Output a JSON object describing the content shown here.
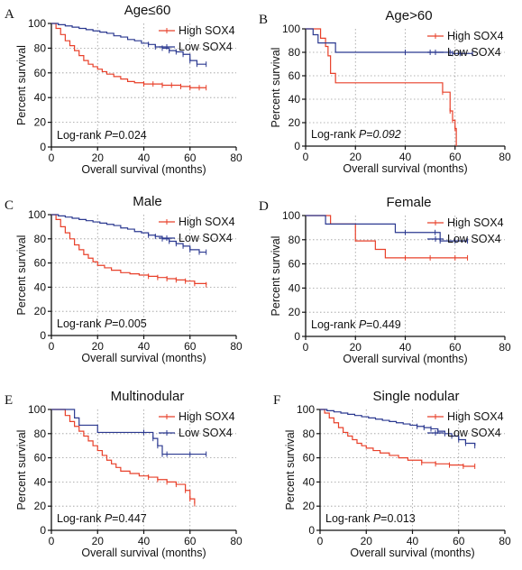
{
  "colors": {
    "high": "#e8402a",
    "low": "#2b3990",
    "axis": "#111111",
    "grid": "#9a9a9a"
  },
  "chart_data": [
    {
      "type": "line",
      "letter": "A",
      "title": "Age≤60",
      "xlabel": "Overall survival (months)",
      "ylabel": "Percent survival",
      "xlim": [
        0,
        80
      ],
      "ylim": [
        0,
        100
      ],
      "xticks": [
        "0",
        "20",
        "40",
        "60",
        "80"
      ],
      "yticks": [
        "0",
        "20",
        "40",
        "60",
        "80",
        "100"
      ],
      "grid": "vertical dotted at 20, 40, 60; horizontal dotted at 20, 40, 60, 80",
      "legend_position": "top-right",
      "logrank": {
        "prefix": "Log-rank ",
        "p": "P",
        "value": "=0.024",
        "value_italic": false
      },
      "series": [
        {
          "name": "High SOX4",
          "color": "#e8402a",
          "x": [
            0,
            2,
            4,
            6,
            8,
            10,
            12,
            14,
            16,
            18,
            20,
            22,
            24,
            27,
            30,
            33,
            36,
            40,
            44,
            48,
            52,
            56,
            60,
            64,
            67
          ],
          "y": [
            100,
            96,
            91,
            86,
            82,
            78,
            74,
            70,
            67,
            65,
            63,
            61,
            59,
            57,
            55,
            53,
            52,
            51,
            51,
            50,
            50,
            49,
            48,
            48,
            48
          ]
        },
        {
          "name": "Low SOX4",
          "color": "#2b3990",
          "x": [
            0,
            3,
            6,
            9,
            12,
            15,
            18,
            21,
            24,
            27,
            30,
            33,
            36,
            39,
            42,
            45,
            48,
            51,
            54,
            57,
            60,
            63,
            67
          ],
          "y": [
            100,
            99,
            98,
            97,
            96,
            95,
            94,
            93,
            92,
            90,
            89,
            87,
            86,
            84,
            83,
            81,
            80,
            78,
            77,
            75,
            70,
            67,
            67
          ]
        }
      ]
    },
    {
      "type": "line",
      "letter": "B",
      "title": "Age>60",
      "xlabel": "Overall survival (months)",
      "ylabel": "Percent survival",
      "xlim": [
        0,
        80
      ],
      "ylim": [
        0,
        100
      ],
      "xticks": [
        "0",
        "20",
        "40",
        "60",
        "80"
      ],
      "yticks": [
        "0",
        "20",
        "40",
        "60",
        "80",
        "100"
      ],
      "grid": "vertical dotted at 20, 40, 60; horizontal dotted at 20, 40, 60, 80",
      "legend_position": "top-right",
      "logrank": {
        "prefix": "Log-rank ",
        "p": "P",
        "value": "=0.092",
        "value_italic": true
      },
      "series": [
        {
          "name": "High SOX4",
          "color": "#e8402a",
          "x": [
            0,
            4,
            6,
            8,
            9,
            10,
            12,
            36,
            55,
            58,
            59,
            60,
            60.5
          ],
          "y": [
            100,
            100,
            92,
            85,
            77,
            62,
            54,
            54,
            46,
            30,
            22,
            15,
            0
          ]
        },
        {
          "name": "Low SOX4",
          "color": "#2b3990",
          "x": [
            0,
            3,
            5,
            8,
            12,
            20,
            30,
            40,
            50,
            58,
            59,
            62,
            67
          ],
          "y": [
            100,
            95,
            88,
            88,
            80,
            80,
            80,
            80,
            80,
            80,
            79,
            79,
            79
          ]
        }
      ]
    },
    {
      "type": "line",
      "letter": "C",
      "title": "Male",
      "xlabel": "Overall survival (months)",
      "ylabel": "Percent survival",
      "xlim": [
        0,
        80
      ],
      "ylim": [
        0,
        100
      ],
      "xticks": [
        "0",
        "20",
        "40",
        "60",
        "80"
      ],
      "yticks": [
        "0",
        "20",
        "40",
        "60",
        "80",
        "100"
      ],
      "grid": "vertical dotted at 20, 40, 60; horizontal dotted at 20, 40, 60, 80",
      "legend_position": "top-right",
      "logrank": {
        "prefix": "Log-rank ",
        "p": "P",
        "value": "=0.005",
        "value_italic": false
      },
      "series": [
        {
          "name": "High SOX4",
          "color": "#e8402a",
          "x": [
            0,
            2,
            4,
            6,
            8,
            10,
            12,
            14,
            16,
            18,
            20,
            23,
            26,
            30,
            34,
            38,
            42,
            46,
            50,
            54,
            58,
            62,
            67
          ],
          "y": [
            100,
            96,
            90,
            85,
            80,
            75,
            71,
            67,
            64,
            61,
            58,
            56,
            54,
            52,
            51,
            50,
            49,
            48,
            47,
            46,
            45,
            43,
            42
          ]
        },
        {
          "name": "Low SOX4",
          "color": "#2b3990",
          "x": [
            0,
            3,
            6,
            9,
            12,
            15,
            18,
            21,
            24,
            27,
            30,
            33,
            36,
            39,
            42,
            45,
            48,
            51,
            54,
            57,
            60,
            64,
            67
          ],
          "y": [
            100,
            99,
            98,
            97,
            96,
            95,
            94,
            93,
            92,
            91,
            89,
            88,
            86,
            85,
            83,
            82,
            80,
            78,
            76,
            74,
            71,
            69,
            69
          ]
        }
      ]
    },
    {
      "type": "line",
      "letter": "D",
      "title": "Female",
      "xlabel": "Overall survival (months)",
      "ylabel": "Percent survival",
      "xlim": [
        0,
        80
      ],
      "ylim": [
        0,
        100
      ],
      "xticks": [
        "0",
        "20",
        "40",
        "60",
        "80"
      ],
      "yticks": [
        "0",
        "20",
        "40",
        "60",
        "80",
        "100"
      ],
      "grid": "vertical dotted at 20, 40, 60; horizontal dotted at 20, 40, 60, 80",
      "legend_position": "top-right",
      "logrank": {
        "prefix": "Log-rank ",
        "p": "P",
        "value": "=0.449",
        "value_italic": false
      },
      "series": [
        {
          "name": "High SOX4",
          "color": "#e8402a",
          "x": [
            0,
            6,
            10,
            18,
            20,
            28,
            32,
            40,
            50,
            60,
            65
          ],
          "y": [
            100,
            100,
            93,
            93,
            79,
            72,
            65,
            65,
            65,
            65,
            65
          ]
        },
        {
          "name": "Low SOX4",
          "color": "#2b3990",
          "x": [
            0,
            7,
            8,
            15,
            20,
            30,
            36,
            40,
            52,
            54,
            60,
            65
          ],
          "y": [
            100,
            100,
            93,
            93,
            93,
            93,
            86,
            86,
            86,
            79,
            79,
            79
          ]
        }
      ]
    },
    {
      "type": "line",
      "letter": "E",
      "title": "Multinodular",
      "xlabel": "Overall survival (months)",
      "ylabel": "Percent survival",
      "xlim": [
        0,
        80
      ],
      "ylim": [
        0,
        100
      ],
      "xticks": [
        "0",
        "20",
        "40",
        "60",
        "80"
      ],
      "yticks": [
        "0",
        "20",
        "40",
        "60",
        "80",
        "100"
      ],
      "grid": "vertical dotted at 20, 40, 60; horizontal dotted at 20, 40, 60, 80",
      "legend_position": "top-right",
      "logrank": {
        "prefix": "Log-rank ",
        "p": "P",
        "value": "=0.447",
        "value_italic": false
      },
      "series": [
        {
          "name": "High SOX4",
          "color": "#e8402a",
          "x": [
            0,
            4,
            6,
            8,
            10,
            12,
            14,
            16,
            18,
            20,
            22,
            24,
            26,
            28,
            30,
            34,
            38,
            42,
            46,
            50,
            54,
            58,
            60,
            62
          ],
          "y": [
            100,
            100,
            95,
            90,
            86,
            82,
            78,
            74,
            70,
            66,
            62,
            58,
            55,
            52,
            49,
            47,
            45,
            44,
            42,
            40,
            38,
            33,
            26,
            22
          ]
        },
        {
          "name": "Low SOX4",
          "color": "#2b3990",
          "x": [
            0,
            6,
            10,
            12,
            18,
            20,
            40,
            44,
            46,
            48,
            50,
            60,
            67
          ],
          "y": [
            100,
            100,
            93,
            87,
            87,
            81,
            81,
            76,
            70,
            63,
            63,
            63,
            63
          ]
        }
      ]
    },
    {
      "type": "line",
      "letter": "F",
      "title": "Single nodular",
      "xlabel": "Overall survival (months)",
      "ylabel": "Percent survival",
      "xlim": [
        0,
        80
      ],
      "ylim": [
        0,
        100
      ],
      "xticks": [
        "0",
        "20",
        "40",
        "60",
        "80"
      ],
      "yticks": [
        "0",
        "20",
        "40",
        "60",
        "80",
        "100"
      ],
      "grid": "vertical dotted at 20, 40, 60; horizontal dotted at 20, 40, 60, 80",
      "legend_position": "top-right",
      "logrank": {
        "prefix": "Log-rank ",
        "p": "P",
        "value": "=0.013",
        "value_italic": false
      },
      "series": [
        {
          "name": "High SOX4",
          "color": "#e8402a",
          "x": [
            0,
            2,
            4,
            6,
            8,
            10,
            12,
            14,
            16,
            18,
            20,
            23,
            26,
            30,
            34,
            38,
            44,
            50,
            56,
            62,
            67
          ],
          "y": [
            100,
            97,
            93,
            89,
            85,
            81,
            78,
            75,
            72,
            70,
            68,
            66,
            64,
            62,
            60,
            58,
            56,
            55,
            54,
            53,
            53
          ]
        },
        {
          "name": "Low SOX4",
          "color": "#2b3990",
          "x": [
            0,
            3,
            6,
            9,
            12,
            15,
            18,
            21,
            24,
            27,
            30,
            33,
            36,
            39,
            42,
            45,
            48,
            51,
            54,
            57,
            60,
            63,
            67
          ],
          "y": [
            100,
            99,
            98,
            97,
            96,
            95,
            94,
            93,
            92,
            91,
            90,
            89,
            88,
            87,
            86,
            85,
            84,
            82,
            80,
            78,
            75,
            72,
            70
          ]
        }
      ]
    }
  ]
}
